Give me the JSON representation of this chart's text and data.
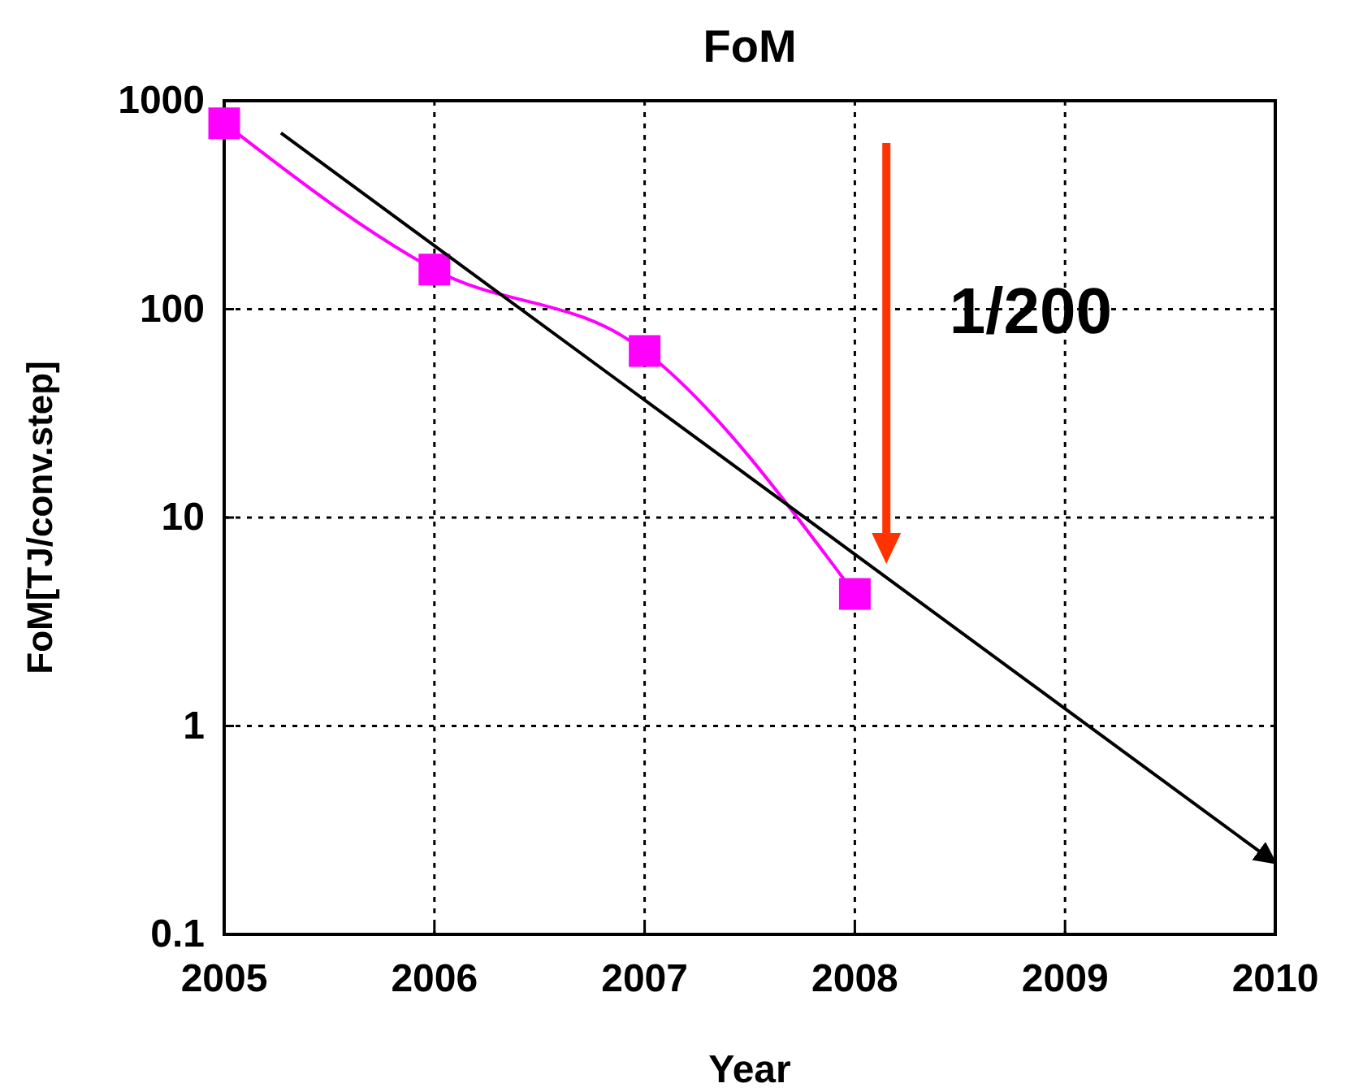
{
  "chart_data": {
    "type": "line",
    "title": "FoM",
    "xlabel": "Year",
    "ylabel": "FoM[TJ/conv.step]",
    "log": true,
    "grid": true,
    "xlim": [
      2005,
      2010
    ],
    "xticks": [
      2005,
      2006,
      2007,
      2008,
      2009,
      2010
    ],
    "ylim": [
      0.1,
      1000
    ],
    "yticks": [
      0.1,
      1,
      10,
      100,
      1000
    ],
    "series": [
      {
        "color": "#ff00ff",
        "x": [
          2005,
          2006,
          2007,
          2008
        ],
        "values": [
          780,
          155,
          63,
          4.3
        ],
        "marker": "square"
      },
      {
        "color": "#000000",
        "x": [
          2005.27,
          2010
        ],
        "values": [
          700,
          0.22
        ],
        "marker": "none"
      }
    ],
    "annotations": [
      "1/200"
    ]
  }
}
